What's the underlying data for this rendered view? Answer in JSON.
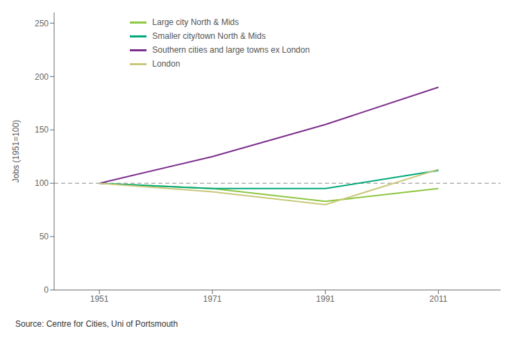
{
  "chart_data": {
    "type": "line",
    "x": [
      1951,
      1971,
      1991,
      2011
    ],
    "series": [
      {
        "name": "Large city North & Mids",
        "color": "#8dc63f",
        "values": [
          100,
          95,
          83,
          95
        ]
      },
      {
        "name": "Smaller city/town North & Mids",
        "color": "#00a878",
        "values": [
          100,
          95,
          95,
          112
        ]
      },
      {
        "name": "Southern cities and large towns ex London",
        "color": "#7b2d8b",
        "values": [
          100,
          125,
          155,
          190
        ]
      },
      {
        "name": "London",
        "color": "#c8c87a",
        "values": [
          100,
          92,
          80,
          113
        ]
      }
    ],
    "ylabel": "Jobs (1951=100)",
    "xlim": [
      1943,
      2022
    ],
    "ylim": [
      0,
      260
    ],
    "xticks": [
      1951,
      1971,
      1991,
      2011
    ],
    "yticks": [
      0,
      50,
      100,
      150,
      200,
      250
    ],
    "reference_lines": [
      {
        "y": 100,
        "line_style": "dashed"
      }
    ],
    "source": "Source: Centre for Cities, Uni of Portsmouth",
    "legend": "upper left",
    "grid": false
  }
}
